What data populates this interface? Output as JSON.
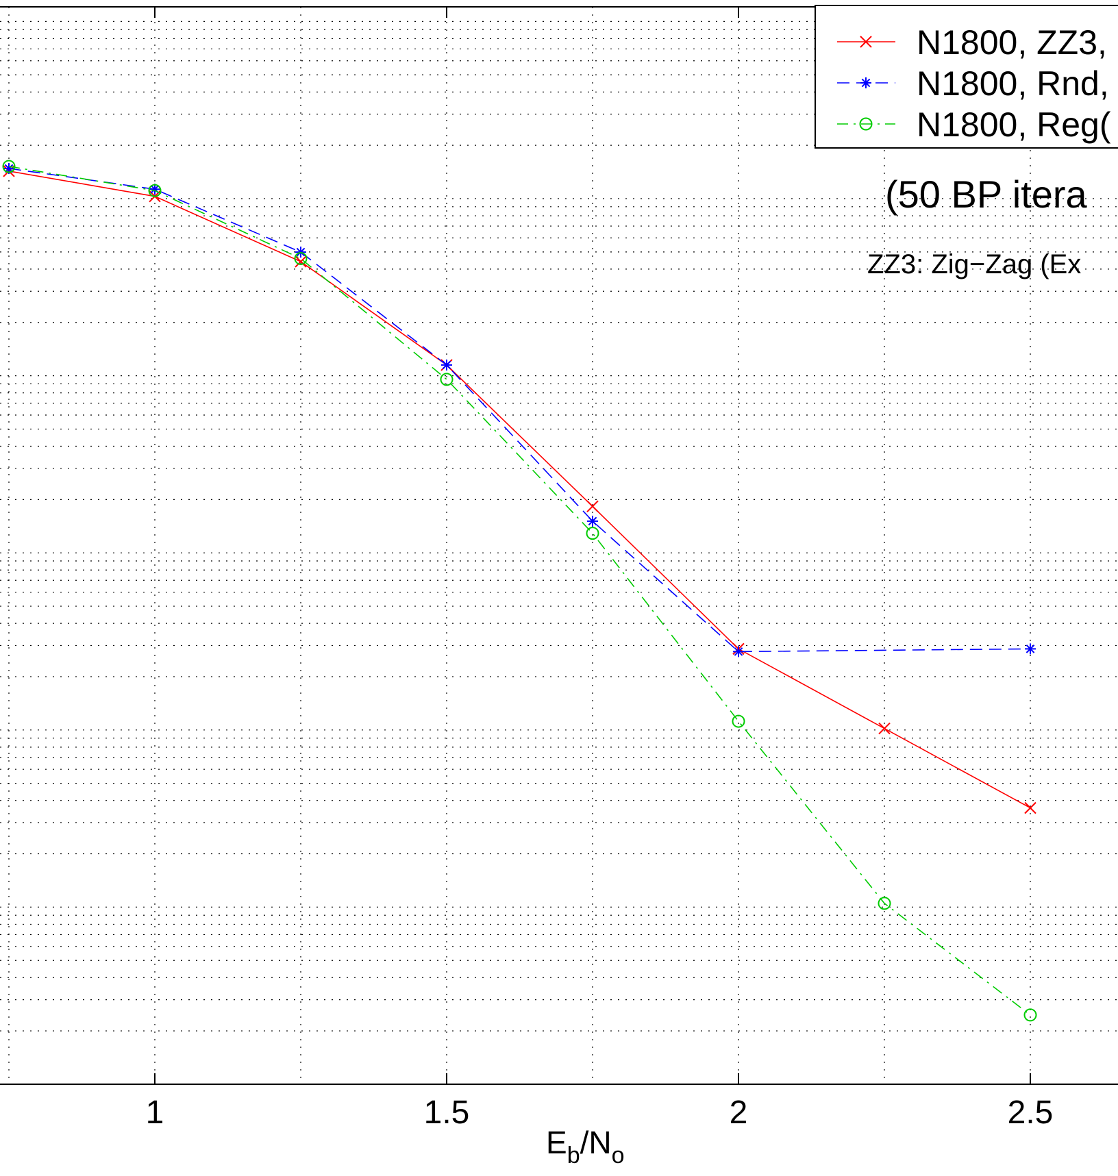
{
  "chart_data": {
    "type": "line",
    "xlabel": {
      "base1": "E",
      "sub1": "b",
      "sep": "/N",
      "sub2": "o"
    },
    "x_ticks": [
      1,
      1.5,
      2,
      2.5
    ],
    "x_tick_labels": [
      "1",
      "1.5",
      "2",
      "2.5"
    ],
    "xlim": [
      0.75,
      2.9
    ],
    "y_scale": "log",
    "y_visible_decades": [
      0.05,
      0.11,
      0.17,
      0.25,
      0.3,
      0.4
    ],
    "ylim_pixel_log": [
      1e-06,
      1.0
    ],
    "grid": true,
    "legend_placement": "top-right",
    "series": [
      {
        "name": "N1800, ZZ3,",
        "color": "#ff0000",
        "marker": "x",
        "linestyle": "solid",
        "x": [
          0.75,
          1.0,
          1.25,
          1.5,
          1.75,
          2.0,
          2.25,
          2.5
        ],
        "y": [
          0.143,
          0.103,
          0.0441,
          0.0115,
          0.00183,
          0.000287,
          0.000102,
          3.63e-05
        ]
      },
      {
        "name": "N1800, Rnd,",
        "color": "#0000ff",
        "marker": "*",
        "linestyle": "dashed",
        "x": [
          0.75,
          1.0,
          1.25,
          1.5,
          1.75,
          2.0,
          2.5
        ],
        "y": [
          0.148,
          0.113,
          0.0499,
          0.0115,
          0.00151,
          0.000277,
          0.000287
        ]
      },
      {
        "name": "N1800, Reg(",
        "color": "#00cc00",
        "marker": "o",
        "linestyle": "dashdot",
        "x": [
          0.75,
          1.0,
          1.25,
          1.5,
          1.75,
          2.0,
          2.25,
          2.5
        ],
        "y": [
          0.152,
          0.111,
          0.0459,
          0.00954,
          0.00129,
          0.000112,
          1.05e-05,
          2.46e-06
        ]
      }
    ],
    "annotations": [
      "(50 BP itera",
      "ZZ3: Zig−Zag (Ex"
    ]
  }
}
